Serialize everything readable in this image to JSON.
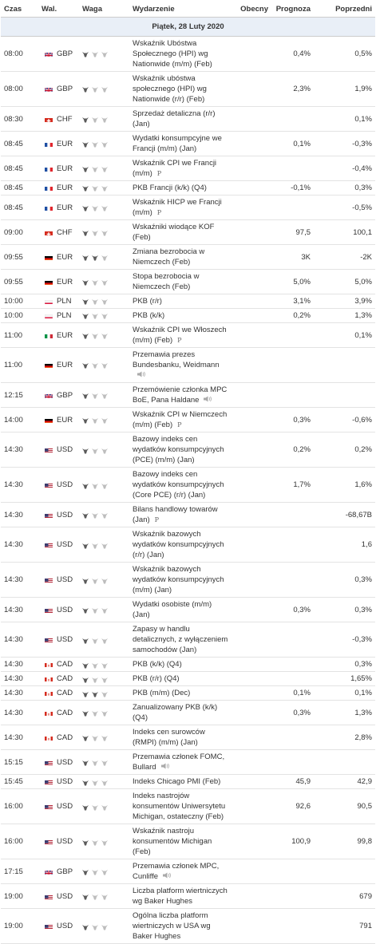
{
  "columns": {
    "time": "Czas",
    "currency": "Wal.",
    "weight": "Waga",
    "event": "Wydarzenie",
    "actual": "Obecny",
    "forecast": "Prognoza",
    "previous": "Poprzedni"
  },
  "day_label": "Piątek, 28 Luty 2020",
  "flag_colors": {
    "gbp": "#1f3b8c",
    "chf": "#d52b1e",
    "eur_fr": "#1f4fa3",
    "eur_de": "#000000",
    "eur_it": "#009246",
    "pln": "#dc143c",
    "usd": "#3c3b6e",
    "cad": "#d52b1e"
  },
  "rows": [
    {
      "time": "08:00",
      "flag": "uk",
      "currency": "GBP",
      "impact": 1,
      "event": "Wskaźnik Ubóstwa Społecznego (HPI) wg Nationwide (m/m) (Feb)",
      "actual": "",
      "forecast": "0,4%",
      "previous": "0,5%"
    },
    {
      "time": "08:00",
      "flag": "uk",
      "currency": "GBP",
      "impact": 1,
      "event": "Wskaźnik ubóstwa społecznego (HPI) wg Nationwide (r/r) (Feb)",
      "actual": "",
      "forecast": "2,3%",
      "previous": "1,9%"
    },
    {
      "time": "08:30",
      "flag": "ch",
      "currency": "CHF",
      "impact": 1,
      "event": "Sprzedaż detaliczna (r/r) (Jan)",
      "actual": "",
      "forecast": "",
      "previous": "0,1%"
    },
    {
      "time": "08:45",
      "flag": "fr",
      "currency": "EUR",
      "impact": 1,
      "event": "Wydatki konsumpcyjne we Francji (m/m) (Jan)",
      "actual": "",
      "forecast": "0,1%",
      "previous": "-0,3%"
    },
    {
      "time": "08:45",
      "flag": "fr",
      "currency": "EUR",
      "impact": 1,
      "event": "Wskaźnik CPI we Francji (m/m)",
      "marker": "P",
      "actual": "",
      "forecast": "",
      "previous": "-0,4%"
    },
    {
      "time": "08:45",
      "flag": "fr",
      "currency": "EUR",
      "impact": 1,
      "event": "PKB Francji (k/k) (Q4)",
      "actual": "",
      "forecast": "-0,1%",
      "previous": "0,3%"
    },
    {
      "time": "08:45",
      "flag": "fr",
      "currency": "EUR",
      "impact": 1,
      "event": "Wskaźnik HICP we Francji (m/m)",
      "marker": "P",
      "actual": "",
      "forecast": "",
      "previous": "-0,5%"
    },
    {
      "time": "09:00",
      "flag": "ch",
      "currency": "CHF",
      "impact": 1,
      "event": "Wskaźniki wiodące KOF (Feb)",
      "actual": "",
      "forecast": "97,5",
      "previous": "100,1"
    },
    {
      "time": "09:55",
      "flag": "de",
      "currency": "EUR",
      "impact": 2,
      "event": "Zmiana bezrobocia w Niemczech (Feb)",
      "actual": "",
      "forecast": "3K",
      "previous": "-2K"
    },
    {
      "time": "09:55",
      "flag": "de",
      "currency": "EUR",
      "impact": 1,
      "event": "Stopa bezrobocia w Niemczech (Feb)",
      "actual": "",
      "forecast": "5,0%",
      "previous": "5,0%"
    },
    {
      "time": "10:00",
      "flag": "pl",
      "currency": "PLN",
      "impact": 1,
      "event": "PKB (r/r)",
      "actual": "",
      "forecast": "3,1%",
      "previous": "3,9%"
    },
    {
      "time": "10:00",
      "flag": "pl",
      "currency": "PLN",
      "impact": 1,
      "event": "PKB (k/k)",
      "actual": "",
      "forecast": "0,2%",
      "previous": "1,3%"
    },
    {
      "time": "11:00",
      "flag": "it",
      "currency": "EUR",
      "impact": 1,
      "event": "Wskaźnik CPI we Włoszech (m/m) (Feb)",
      "marker": "P",
      "actual": "",
      "forecast": "",
      "previous": "0,1%"
    },
    {
      "time": "11:00",
      "flag": "de",
      "currency": "EUR",
      "impact": 1,
      "event": "Przemawia prezes Bundesbanku, Weidmann",
      "speech": true,
      "actual": "",
      "forecast": "",
      "previous": ""
    },
    {
      "time": "12:15",
      "flag": "uk",
      "currency": "GBP",
      "impact": 1,
      "event": "Przemówienie członka MPC BoE, Pana Haldane",
      "speech": true,
      "actual": "",
      "forecast": "",
      "previous": ""
    },
    {
      "time": "14:00",
      "flag": "de",
      "currency": "EUR",
      "impact": 1,
      "event": "Wskaźnik CPI w Niemczech (m/m) (Feb)",
      "marker": "P",
      "actual": "",
      "forecast": "0,3%",
      "previous": "-0,6%"
    },
    {
      "time": "14:30",
      "flag": "us",
      "currency": "USD",
      "impact": 1,
      "event": "Bazowy indeks cen wydatków konsumpcyjnych (PCE) (m/m) (Jan)",
      "actual": "",
      "forecast": "0,2%",
      "previous": "0,2%"
    },
    {
      "time": "14:30",
      "flag": "us",
      "currency": "USD",
      "impact": 1,
      "event": "Bazowy indeks cen wydatków konsumpcyjnych (Core PCE) (r/r) (Jan)",
      "actual": "",
      "forecast": "1,7%",
      "previous": "1,6%"
    },
    {
      "time": "14:30",
      "flag": "us",
      "currency": "USD",
      "impact": 1,
      "event": "Bilans handlowy towarów (Jan)",
      "marker": "P",
      "actual": "",
      "forecast": "",
      "previous": "-68,67B"
    },
    {
      "time": "14:30",
      "flag": "us",
      "currency": "USD",
      "impact": 1,
      "event": "Wskaźnik bazowych wydatków konsumpcyjnych (r/r) (Jan)",
      "actual": "",
      "forecast": "",
      "previous": "1,6"
    },
    {
      "time": "14:30",
      "flag": "us",
      "currency": "USD",
      "impact": 1,
      "event": "Wskaźnik bazowych wydatków konsumpcyjnych (m/m) (Jan)",
      "actual": "",
      "forecast": "",
      "previous": "0,3%"
    },
    {
      "time": "14:30",
      "flag": "us",
      "currency": "USD",
      "impact": 1,
      "event": "Wydatki osobiste (m/m) (Jan)",
      "actual": "",
      "forecast": "0,3%",
      "previous": "0,3%"
    },
    {
      "time": "14:30",
      "flag": "us",
      "currency": "USD",
      "impact": 1,
      "event": "Zapasy w handlu detalicznych, z wyłączeniem samochodów (Jan)",
      "actual": "",
      "forecast": "",
      "previous": "-0,3%"
    },
    {
      "time": "14:30",
      "flag": "ca",
      "currency": "CAD",
      "impact": 1,
      "event": "PKB (k/k) (Q4)",
      "actual": "",
      "forecast": "",
      "previous": "0,3%"
    },
    {
      "time": "14:30",
      "flag": "ca",
      "currency": "CAD",
      "impact": 1,
      "event": "PKB (r/r) (Q4)",
      "actual": "",
      "forecast": "",
      "previous": "1,65%"
    },
    {
      "time": "14:30",
      "flag": "ca",
      "currency": "CAD",
      "impact": 2,
      "event": "PKB (m/m) (Dec)",
      "actual": "",
      "forecast": "0,1%",
      "previous": "0,1%"
    },
    {
      "time": "14:30",
      "flag": "ca",
      "currency": "CAD",
      "impact": 1,
      "event": "Zanualizowany PKB (k/k) (Q4)",
      "actual": "",
      "forecast": "0,3%",
      "previous": "1,3%"
    },
    {
      "time": "14:30",
      "flag": "ca",
      "currency": "CAD",
      "impact": 1,
      "event": "Indeks cen surowców (RMPI) (m/m) (Jan)",
      "actual": "",
      "forecast": "",
      "previous": "2,8%"
    },
    {
      "time": "15:15",
      "flag": "us",
      "currency": "USD",
      "impact": 1,
      "event": "Przemawia członek FOMC, Bullard",
      "speech": true,
      "actual": "",
      "forecast": "",
      "previous": ""
    },
    {
      "time": "15:45",
      "flag": "us",
      "currency": "USD",
      "impact": 1,
      "event": "Indeks Chicago PMI (Feb)",
      "actual": "",
      "forecast": "45,9",
      "previous": "42,9"
    },
    {
      "time": "16:00",
      "flag": "us",
      "currency": "USD",
      "impact": 1,
      "event": "Indeks nastrojów konsumentów Uniwersytetu Michigan, ostateczny (Feb)",
      "actual": "",
      "forecast": "92,6",
      "previous": "90,5"
    },
    {
      "time": "16:00",
      "flag": "us",
      "currency": "USD",
      "impact": 1,
      "event": "Wskaźnik nastroju konsumentów Michigan (Feb)",
      "actual": "",
      "forecast": "100,9",
      "previous": "99,8"
    },
    {
      "time": "17:15",
      "flag": "uk",
      "currency": "GBP",
      "impact": 1,
      "event": "Przemawia członek MPC, Cunliffe",
      "speech": true,
      "actual": "",
      "forecast": "",
      "previous": ""
    },
    {
      "time": "19:00",
      "flag": "us",
      "currency": "USD",
      "impact": 1,
      "event": "Liczba platform wiertniczych wg Baker Hughes",
      "actual": "",
      "forecast": "",
      "previous": "679"
    },
    {
      "time": "19:00",
      "flag": "us",
      "currency": "USD",
      "impact": 1,
      "event": "Ogólna liczba platform wiertniczych w USA wg Baker Hughes",
      "actual": "",
      "forecast": "",
      "previous": "791"
    }
  ]
}
